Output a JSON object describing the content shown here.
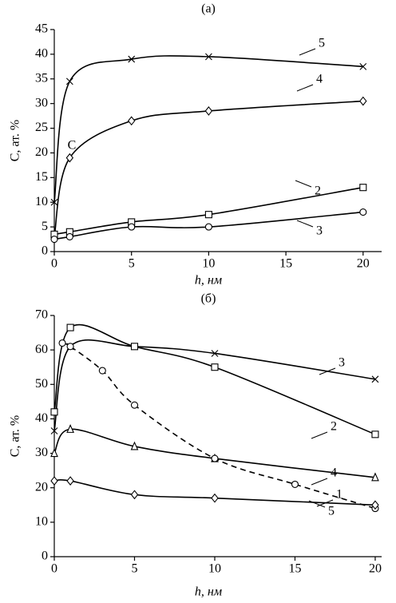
{
  "chart_data": [
    {
      "type": "line",
      "title": "(а)",
      "x_label": "h, нм",
      "y_label": "C, ат. %",
      "annotation": "C",
      "xlim": [
        0,
        21.2
      ],
      "ylim": [
        0,
        45
      ],
      "xticks": [
        0,
        5,
        10,
        15,
        20
      ],
      "yticks": [
        0,
        5,
        10,
        15,
        20,
        25,
        30,
        35,
        40,
        45
      ],
      "series": [
        {
          "name": "5",
          "color": "#000000",
          "marker": "x",
          "dash": false,
          "x": [
            0,
            1,
            5,
            10,
            20
          ],
          "values": [
            10,
            34.5,
            39,
            39.5,
            37.5
          ]
        },
        {
          "name": "4",
          "color": "#000000",
          "marker": "diamond",
          "dash": false,
          "x": [
            0,
            1,
            5,
            10,
            20
          ],
          "values": [
            3,
            19,
            26.5,
            28.5,
            30.5
          ]
        },
        {
          "name": "2",
          "color": "#000000",
          "marker": "square",
          "dash": false,
          "x": [
            0,
            1,
            5,
            10,
            20
          ],
          "values": [
            3.5,
            4,
            6,
            7.5,
            13
          ]
        },
        {
          "name": "3",
          "color": "#000000",
          "marker": "circle",
          "dash": false,
          "x": [
            0,
            1,
            5,
            10,
            20
          ],
          "values": [
            2.5,
            3,
            5,
            5,
            8
          ]
        }
      ]
    },
    {
      "type": "line",
      "title": "(б)",
      "x_label": "h, нм",
      "y_label": "C, ат. %",
      "xlim": [
        0,
        20.4
      ],
      "ylim": [
        0,
        70
      ],
      "xticks": [
        0,
        5,
        10,
        15,
        20
      ],
      "yticks": [
        0,
        10,
        20,
        30,
        40,
        50,
        60,
        70
      ],
      "series": [
        {
          "name": "3",
          "color": "#000000",
          "marker": "x",
          "dash": false,
          "x": [
            0,
            1,
            5,
            10,
            20
          ],
          "values": [
            36.5,
            61,
            61,
            59,
            51.5
          ]
        },
        {
          "name": "2",
          "color": "#000000",
          "marker": "square",
          "dash": false,
          "x": [
            0,
            1,
            5,
            10,
            20
          ],
          "values": [
            42,
            66.5,
            61,
            55,
            35.5
          ]
        },
        {
          "name": "4",
          "color": "#000000",
          "marker": "triangle",
          "dash": false,
          "x": [
            0,
            1,
            5,
            10,
            20
          ],
          "values": [
            30,
            37,
            32,
            28.5,
            23
          ]
        },
        {
          "name": "1",
          "color": "#000000",
          "marker": "circle",
          "dash": true,
          "x": [
            0.5,
            1,
            3,
            5,
            10,
            15,
            20
          ],
          "values": [
            62,
            61,
            54,
            44,
            28.5,
            21,
            14
          ]
        },
        {
          "name": "5",
          "color": "#000000",
          "marker": "diamond",
          "dash": false,
          "x": [
            0,
            1,
            5,
            10,
            20
          ],
          "values": [
            22,
            22,
            18,
            17,
            15
          ]
        }
      ]
    }
  ]
}
